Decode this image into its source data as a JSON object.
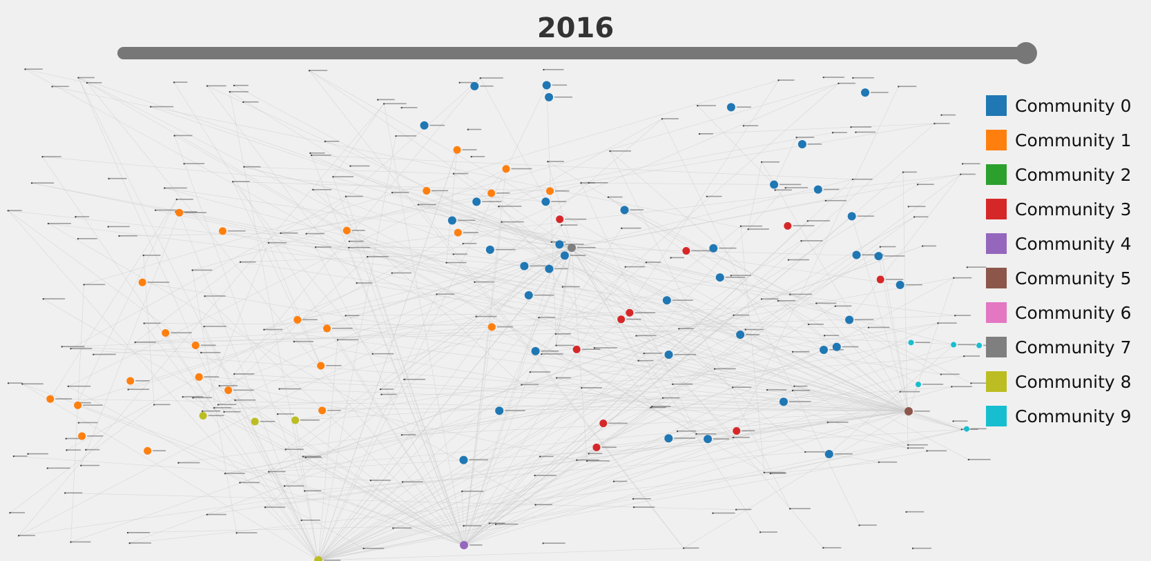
{
  "slider": {
    "year": "2016",
    "value_fraction": 1.0
  },
  "legend": [
    {
      "label": "Community 0",
      "color": "#1f77b4"
    },
    {
      "label": "Community 1",
      "color": "#ff7f0e"
    },
    {
      "label": "Community 2",
      "color": "#2ca02c"
    },
    {
      "label": "Community 3",
      "color": "#d62728"
    },
    {
      "label": "Community 4",
      "color": "#9467bd"
    },
    {
      "label": "Community 5",
      "color": "#8c564b"
    },
    {
      "label": "Community 6",
      "color": "#e377c2"
    },
    {
      "label": "Community 7",
      "color": "#7f7f7f"
    },
    {
      "label": "Community 8",
      "color": "#bcbd22"
    },
    {
      "label": "Community 9",
      "color": "#17becf"
    }
  ],
  "graph": {
    "edge_color": "#cccccc",
    "node_label_color": "#555555",
    "highlighted_nodes": [
      {
        "community": 7,
        "size": "large"
      },
      {
        "community": 5,
        "size": "large"
      },
      {
        "community": 4,
        "size": "large"
      },
      {
        "community": 8,
        "size": "large"
      },
      {
        "community": 0,
        "size": "medium"
      },
      {
        "community": 1,
        "size": "medium"
      },
      {
        "community": 3,
        "size": "medium"
      },
      {
        "community": 9,
        "size": "small"
      }
    ]
  }
}
